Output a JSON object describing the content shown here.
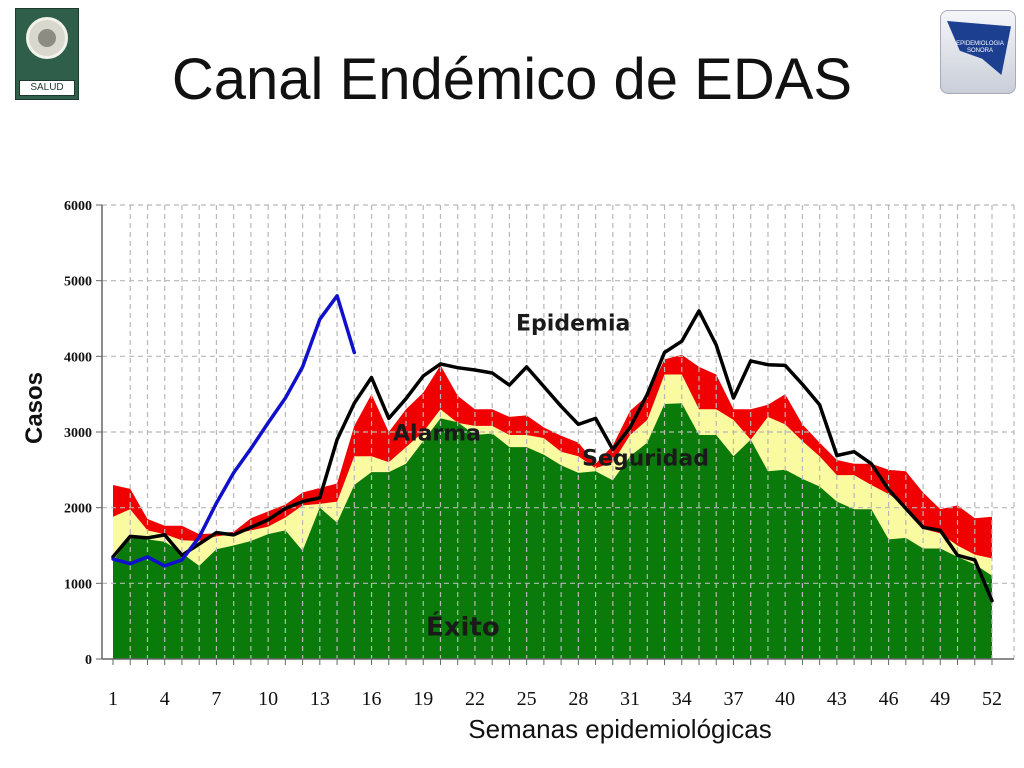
{
  "header": {
    "title": "Canal Endémico de EDAS",
    "logo_left_text": "SALUD",
    "logo_right_text": "EPIDEMIOLOGIA SONORA"
  },
  "chart_data": {
    "type": "area",
    "title": "",
    "xlabel": "Semanas epidemiológicas",
    "ylabel": "Casos",
    "xlim": [
      1,
      52
    ],
    "ylim": [
      0,
      6000
    ],
    "yticks": [
      0,
      1000,
      2000,
      3000,
      4000,
      5000,
      6000
    ],
    "xticks": [
      1,
      4,
      7,
      10,
      13,
      16,
      19,
      22,
      25,
      28,
      31,
      34,
      37,
      40,
      43,
      46,
      49,
      52
    ],
    "grid": true,
    "zones": [
      {
        "name": "Éxito",
        "color": "#0a7a0a",
        "values": [
          1300,
          1600,
          1580,
          1550,
          1400,
          1230,
          1450,
          1500,
          1560,
          1650,
          1700,
          1430,
          2000,
          1800,
          2300,
          2470,
          2470,
          2580,
          2880,
          3180,
          3130,
          2960,
          2980,
          2800,
          2800,
          2700,
          2560,
          2460,
          2480,
          2360,
          2680,
          2860,
          3370,
          3380,
          2960,
          2960,
          2680,
          2900,
          2480,
          2500,
          2380,
          2280,
          2080,
          1980,
          1980,
          1580,
          1600,
          1460,
          1460,
          1350,
          1250,
          1100
        ]
      },
      {
        "name": "Seguridad",
        "color": "#fafaa0",
        "values": [
          1880,
          1980,
          1700,
          1650,
          1570,
          1560,
          1620,
          1650,
          1700,
          1750,
          1870,
          2030,
          2050,
          2080,
          2680,
          2680,
          2600,
          2800,
          3000,
          3300,
          3120,
          3080,
          3080,
          2960,
          2960,
          2920,
          2740,
          2680,
          2520,
          2600,
          2960,
          3160,
          3760,
          3760,
          3300,
          3300,
          3160,
          2900,
          3200,
          3100,
          2880,
          2680,
          2430,
          2430,
          2300,
          2180,
          2020,
          1720,
          1660,
          1500,
          1380,
          1330
        ]
      },
      {
        "name": "Alarma",
        "color": "#f00000",
        "values": [
          2300,
          2250,
          1850,
          1760,
          1760,
          1650,
          1660,
          1680,
          1860,
          1950,
          2040,
          2200,
          2260,
          2320,
          3080,
          3500,
          3000,
          3300,
          3520,
          3880,
          3480,
          3300,
          3300,
          3200,
          3220,
          3060,
          2950,
          2860,
          2580,
          2820,
          3280,
          3480,
          3960,
          4020,
          3860,
          3760,
          3300,
          3300,
          3360,
          3500,
          3100,
          2860,
          2630,
          2580,
          2580,
          2500,
          2480,
          2200,
          1980,
          2030,
          1860,
          1880
        ]
      }
    ],
    "series": [
      {
        "name": "",
        "color": "#000000",
        "x_start": 1,
        "values": [
          1350,
          1620,
          1600,
          1640,
          1370,
          1520,
          1670,
          1640,
          1740,
          1840,
          1990,
          2080,
          2130,
          2900,
          3380,
          3720,
          3180,
          3440,
          3740,
          3900,
          3850,
          3820,
          3780,
          3620,
          3860,
          3600,
          3340,
          3100,
          3180,
          2770,
          3060,
          3500,
          4050,
          4200,
          4600,
          4150,
          3450,
          3940,
          3890,
          3880,
          3630,
          3360,
          2690,
          2740,
          2580,
          2240,
          1990,
          1740,
          1700,
          1370,
          1310,
          770
        ]
      },
      {
        "name": "",
        "color": "#1010cc",
        "x_start": 1,
        "values": [
          1320,
          1260,
          1350,
          1230,
          1310,
          1610,
          2060,
          2460,
          2780,
          3120,
          3450,
          3860,
          4490,
          4800,
          4050
        ]
      }
    ],
    "annotations": [
      {
        "text": "Epidemia",
        "x": 27.7,
        "y": 4340
      },
      {
        "text": "Alarma",
        "x": 19.8,
        "y": 2890
      },
      {
        "text": "Seguridad",
        "x": 31.9,
        "y": 2560
      },
      {
        "text": "Éxito",
        "x": 21.3,
        "y": 310
      }
    ]
  }
}
